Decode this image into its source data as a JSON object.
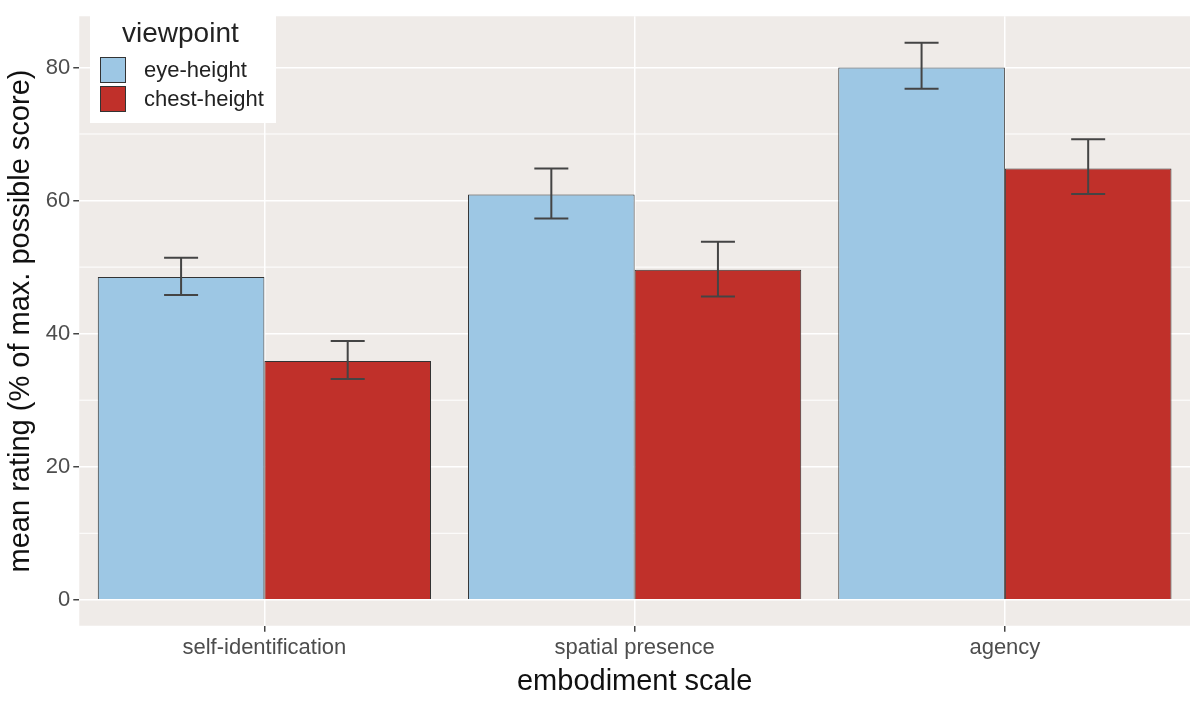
{
  "chart_data": {
    "type": "bar",
    "xlabel": "embodiment scale",
    "ylabel": "mean rating (% of max. possible score)",
    "legend_title": "viewpoint",
    "categories": [
      "self-identification",
      "spatial presence",
      "agency"
    ],
    "series": [
      {
        "name": "eye-height",
        "color": "#9dc7e4",
        "values": [
          48.5,
          60.9,
          80.0
        ],
        "errors": [
          [
            45.8,
            51.4
          ],
          [
            57.3,
            64.8
          ],
          [
            76.8,
            83.7
          ]
        ]
      },
      {
        "name": "chest-height",
        "color": "#c0302a",
        "values": [
          35.9,
          49.6,
          64.8
        ],
        "errors": [
          [
            33.2,
            38.9
          ],
          [
            45.6,
            53.8
          ],
          [
            61.0,
            69.2
          ]
        ]
      }
    ],
    "ylim": [
      -3.9,
      87.7
    ],
    "yticks": [
      0,
      20,
      40,
      60,
      80
    ],
    "grid": true,
    "legend": "top left"
  }
}
